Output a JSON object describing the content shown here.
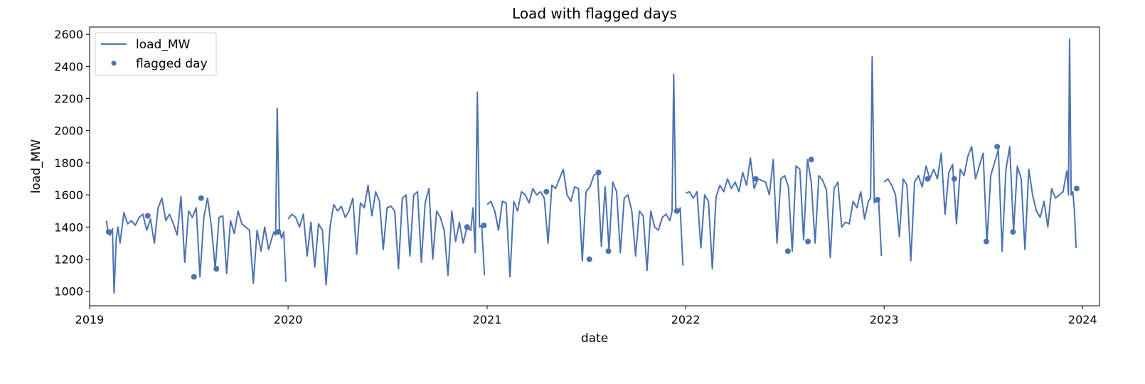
{
  "chart_data": {
    "type": "line",
    "title": "Load with flagged days",
    "xlabel": "date",
    "ylabel": "load_MW",
    "xlim": [
      "2019-01-01",
      "2024-02-01"
    ],
    "ylim": [
      910,
      2645
    ],
    "x_ticks": [
      "2019",
      "2020",
      "2021",
      "2022",
      "2023",
      "2024"
    ],
    "y_ticks": [
      1000,
      1200,
      1400,
      1600,
      1800,
      2000,
      2200,
      2400,
      2600
    ],
    "grid": false,
    "legend": {
      "position": "upper-left",
      "entries": [
        "load_MW",
        "flagged day"
      ]
    },
    "colors": {
      "series": "#4c72b0"
    },
    "series": [
      {
        "name": "load_MW",
        "kind": "line",
        "segments": [
          {
            "x": [
              "2019-02-01",
              "2019-02-04",
              "2019-02-08",
              "2019-02-12",
              "2019-02-15",
              "2019-02-19",
              "2019-02-22",
              "2019-02-26",
              "2019-03-05",
              "2019-03-12",
              "2019-03-19",
              "2019-03-26",
              "2019-04-02",
              "2019-04-09",
              "2019-04-16",
              "2019-04-23",
              "2019-04-30",
              "2019-05-07",
              "2019-05-14",
              "2019-05-21",
              "2019-05-28",
              "2019-06-04",
              "2019-06-11",
              "2019-06-18",
              "2019-06-25",
              "2019-07-02",
              "2019-07-09",
              "2019-07-16",
              "2019-07-23",
              "2019-07-30",
              "2019-08-06",
              "2019-08-13",
              "2019-08-20",
              "2019-08-27",
              "2019-09-03",
              "2019-09-10",
              "2019-09-17",
              "2019-09-24",
              "2019-10-01",
              "2019-10-08",
              "2019-10-15",
              "2019-10-22",
              "2019-10-29",
              "2019-11-05",
              "2019-11-12",
              "2019-11-19",
              "2019-11-26",
              "2019-12-03",
              "2019-12-06",
              "2019-12-09",
              "2019-12-12",
              "2019-12-16",
              "2019-12-20",
              "2019-12-24",
              "2019-12-28"
            ],
            "y": [
              1440,
              1360,
              1350,
              1390,
              990,
              1330,
              1400,
              1300,
              1490,
              1420,
              1440,
              1410,
              1460,
              1480,
              1380,
              1450,
              1300,
              1520,
              1580,
              1440,
              1480,
              1420,
              1350,
              1590,
              1180,
              1500,
              1460,
              1520,
              1090,
              1460,
              1580,
              1400,
              1140,
              1460,
              1470,
              1110,
              1440,
              1360,
              1500,
              1420,
              1400,
              1380,
              1050,
              1380,
              1250,
              1400,
              1260,
              1340,
              1370,
              1350,
              2140,
              1390,
              1330,
              1370,
              1060
            ]
          },
          {
            "x": [
              "2020-01-01",
              "2020-01-08",
              "2020-01-15",
              "2020-01-22",
              "2020-01-29",
              "2020-02-05",
              "2020-02-12",
              "2020-02-19",
              "2020-02-26",
              "2020-03-04",
              "2020-03-11",
              "2020-03-18",
              "2020-03-25",
              "2020-04-01",
              "2020-04-08",
              "2020-04-15",
              "2020-04-22",
              "2020-04-29",
              "2020-05-06",
              "2020-05-13",
              "2020-05-20",
              "2020-05-27",
              "2020-06-03",
              "2020-06-10",
              "2020-06-17",
              "2020-06-24",
              "2020-07-01",
              "2020-07-08",
              "2020-07-15",
              "2020-07-22",
              "2020-07-29",
              "2020-08-05",
              "2020-08-12",
              "2020-08-19",
              "2020-08-26",
              "2020-09-02",
              "2020-09-09",
              "2020-09-16",
              "2020-09-23",
              "2020-09-30",
              "2020-10-07",
              "2020-10-14",
              "2020-10-21",
              "2020-10-28",
              "2020-11-04",
              "2020-11-11",
              "2020-11-18",
              "2020-11-25",
              "2020-12-02",
              "2020-12-06",
              "2020-12-10",
              "2020-12-14",
              "2020-12-18",
              "2020-12-22",
              "2020-12-27"
            ],
            "y": [
              1450,
              1480,
              1460,
              1400,
              1480,
              1220,
              1430,
              1150,
              1420,
              1380,
              1040,
              1400,
              1540,
              1500,
              1530,
              1460,
              1500,
              1580,
              1230,
              1550,
              1520,
              1660,
              1470,
              1620,
              1560,
              1260,
              1520,
              1530,
              1500,
              1140,
              1580,
              1600,
              1220,
              1600,
              1620,
              1180,
              1550,
              1640,
              1200,
              1500,
              1460,
              1380,
              1100,
              1500,
              1310,
              1430,
              1300,
              1400,
              1380,
              1520,
              1240,
              2240,
              1400,
              1410,
              1100
            ]
          },
          {
            "x": [
              "2021-01-01",
              "2021-01-08",
              "2021-01-15",
              "2021-01-22",
              "2021-01-29",
              "2021-02-05",
              "2021-02-12",
              "2021-02-19",
              "2021-02-26",
              "2021-03-05",
              "2021-03-12",
              "2021-03-19",
              "2021-03-26",
              "2021-04-02",
              "2021-04-09",
              "2021-04-16",
              "2021-04-23",
              "2021-04-30",
              "2021-05-07",
              "2021-05-14",
              "2021-05-21",
              "2021-05-28",
              "2021-06-04",
              "2021-06-11",
              "2021-06-18",
              "2021-06-25",
              "2021-07-02",
              "2021-07-09",
              "2021-07-16",
              "2021-07-23",
              "2021-07-30",
              "2021-08-06",
              "2021-08-13",
              "2021-08-20",
              "2021-08-27",
              "2021-09-03",
              "2021-09-10",
              "2021-09-17",
              "2021-09-24",
              "2021-10-01",
              "2021-10-08",
              "2021-10-15",
              "2021-10-22",
              "2021-10-29",
              "2021-11-05",
              "2021-11-12",
              "2021-11-19",
              "2021-11-26",
              "2021-12-03",
              "2021-12-07",
              "2021-12-10",
              "2021-12-14",
              "2021-12-18",
              "2021-12-22",
              "2021-12-27"
            ],
            "y": [
              1540,
              1560,
              1500,
              1380,
              1560,
              1550,
              1090,
              1560,
              1500,
              1620,
              1600,
              1550,
              1640,
              1600,
              1620,
              1580,
              1300,
              1660,
              1640,
              1700,
              1760,
              1600,
              1560,
              1650,
              1640,
              1190,
              1620,
              1650,
              1720,
              1740,
              1280,
              1650,
              1260,
              1680,
              1620,
              1240,
              1580,
              1600,
              1500,
              1220,
              1500,
              1470,
              1130,
              1500,
              1400,
              1380,
              1460,
              1480,
              1440,
              1500,
              2350,
              1520,
              1490,
              1520,
              1160
            ]
          },
          {
            "x": [
              "2022-01-01",
              "2022-01-08",
              "2022-01-15",
              "2022-01-22",
              "2022-01-29",
              "2022-02-05",
              "2022-02-12",
              "2022-02-19",
              "2022-02-26",
              "2022-03-05",
              "2022-03-12",
              "2022-03-19",
              "2022-03-26",
              "2022-04-02",
              "2022-04-09",
              "2022-04-16",
              "2022-04-23",
              "2022-04-30",
              "2022-05-07",
              "2022-05-14",
              "2022-05-21",
              "2022-05-28",
              "2022-06-04",
              "2022-06-11",
              "2022-06-18",
              "2022-06-25",
              "2022-07-02",
              "2022-07-09",
              "2022-07-16",
              "2022-07-23",
              "2022-07-30",
              "2022-08-06",
              "2022-08-13",
              "2022-08-20",
              "2022-08-27",
              "2022-09-03",
              "2022-09-10",
              "2022-09-17",
              "2022-09-24",
              "2022-10-01",
              "2022-10-08",
              "2022-10-15",
              "2022-10-22",
              "2022-10-29",
              "2022-11-05",
              "2022-11-12",
              "2022-11-19",
              "2022-11-26",
              "2022-12-03",
              "2022-12-07",
              "2022-12-10",
              "2022-12-14",
              "2022-12-18",
              "2022-12-22",
              "2022-12-27"
            ],
            "y": [
              1610,
              1620,
              1580,
              1620,
              1270,
              1600,
              1560,
              1140,
              1590,
              1660,
              1620,
              1700,
              1640,
              1680,
              1620,
              1740,
              1660,
              1830,
              1640,
              1700,
              1690,
              1680,
              1600,
              1820,
              1300,
              1700,
              1720,
              1650,
              1250,
              1780,
              1760,
              1320,
              1820,
              1680,
              1300,
              1720,
              1690,
              1630,
              1210,
              1640,
              1680,
              1400,
              1430,
              1420,
              1560,
              1520,
              1620,
              1450,
              1560,
              1580,
              2460,
              1550,
              1570,
              1560,
              1220
            ]
          },
          {
            "x": [
              "2023-01-01",
              "2023-01-08",
              "2023-01-15",
              "2023-01-22",
              "2023-01-29",
              "2023-02-05",
              "2023-02-12",
              "2023-02-19",
              "2023-02-26",
              "2023-03-05",
              "2023-03-12",
              "2023-03-19",
              "2023-03-26",
              "2023-04-02",
              "2023-04-09",
              "2023-04-16",
              "2023-04-23",
              "2023-04-30",
              "2023-05-07",
              "2023-05-14",
              "2023-05-21",
              "2023-05-28",
              "2023-06-04",
              "2023-06-11",
              "2023-06-18",
              "2023-06-25",
              "2023-07-02",
              "2023-07-09",
              "2023-07-16",
              "2023-07-23",
              "2023-07-30",
              "2023-08-06",
              "2023-08-13",
              "2023-08-20",
              "2023-08-27",
              "2023-09-03",
              "2023-09-10",
              "2023-09-17",
              "2023-09-24",
              "2023-10-01",
              "2023-10-08",
              "2023-10-15",
              "2023-10-22",
              "2023-10-29",
              "2023-11-05",
              "2023-11-12",
              "2023-11-19",
              "2023-11-26",
              "2023-12-03",
              "2023-12-06",
              "2023-12-08",
              "2023-12-11",
              "2023-12-14",
              "2023-12-17",
              "2023-12-20"
            ],
            "y": [
              1680,
              1700,
              1660,
              1600,
              1340,
              1700,
              1660,
              1190,
              1680,
              1720,
              1650,
              1780,
              1700,
              1760,
              1700,
              1860,
              1480,
              1740,
              1790,
              1420,
              1760,
              1720,
              1840,
              1900,
              1700,
              1780,
              1860,
              1300,
              1720,
              1800,
              1880,
              1250,
              1760,
              1900,
              1370,
              1780,
              1700,
              1260,
              1760,
              1600,
              1500,
              1460,
              1560,
              1400,
              1640,
              1580,
              1600,
              1620,
              1750,
              1600,
              2570,
              1600,
              1620,
              1500,
              1270
            ]
          }
        ]
      },
      {
        "name": "flagged day",
        "kind": "scatter",
        "x": [
          "2019-02-05",
          "2019-04-18",
          "2019-07-12",
          "2019-07-25",
          "2019-08-22",
          "2019-12-14",
          "2020-11-25",
          "2020-12-26",
          "2021-04-20",
          "2021-07-08",
          "2021-07-25",
          "2021-08-12",
          "2021-12-16",
          "2022-05-10",
          "2022-07-08",
          "2022-08-14",
          "2022-08-20",
          "2022-12-20",
          "2023-03-22",
          "2023-05-10",
          "2023-07-08",
          "2023-07-28",
          "2023-08-26",
          "2023-12-21"
        ],
        "y": [
          1370,
          1470,
          1090,
          1580,
          1140,
          1370,
          1400,
          1410,
          1620,
          1200,
          1740,
          1250,
          1500,
          1700,
          1250,
          1310,
          1820,
          1570,
          1700,
          1700,
          1310,
          1900,
          1370,
          1640
        ]
      }
    ]
  }
}
